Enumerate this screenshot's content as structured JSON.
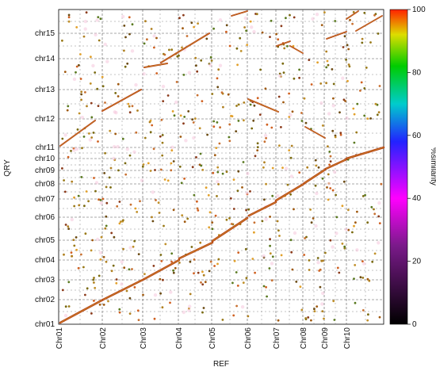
{
  "chart_data": {
    "type": "scatter",
    "xlabel": "REF",
    "ylabel": "QRY",
    "x_ticks": [
      "Chr01",
      "Chr02",
      "Chr03",
      "Chr04",
      "Chr05",
      "Chr06",
      "Chr07",
      "Chr08",
      "Chr09",
      "Chr10"
    ],
    "y_ticks": [
      "chr01",
      "chr02",
      "chr03",
      "chr04",
      "chr05",
      "chr06",
      "chr07",
      "chr08",
      "chr09",
      "chr10",
      "chr11",
      "chr12",
      "chr13",
      "chr14",
      "chr15"
    ],
    "grid": true,
    "colorbar": {
      "label": "%similarity",
      "ticks": [
        "0",
        "20",
        "40",
        "60",
        "80",
        "100"
      ],
      "range": [
        0,
        100
      ],
      "stops": [
        {
          "value": 0,
          "color": "#000000"
        },
        {
          "value": 25,
          "color": "#7a1a8a"
        },
        {
          "value": 40,
          "color": "#ff00ff"
        },
        {
          "value": 58,
          "color": "#2222ff"
        },
        {
          "value": 70,
          "color": "#00cccc"
        },
        {
          "value": 82,
          "color": "#00cc00"
        },
        {
          "value": 92,
          "color": "#dddd00"
        },
        {
          "value": 100,
          "color": "#ff2200"
        }
      ]
    }
  }
}
